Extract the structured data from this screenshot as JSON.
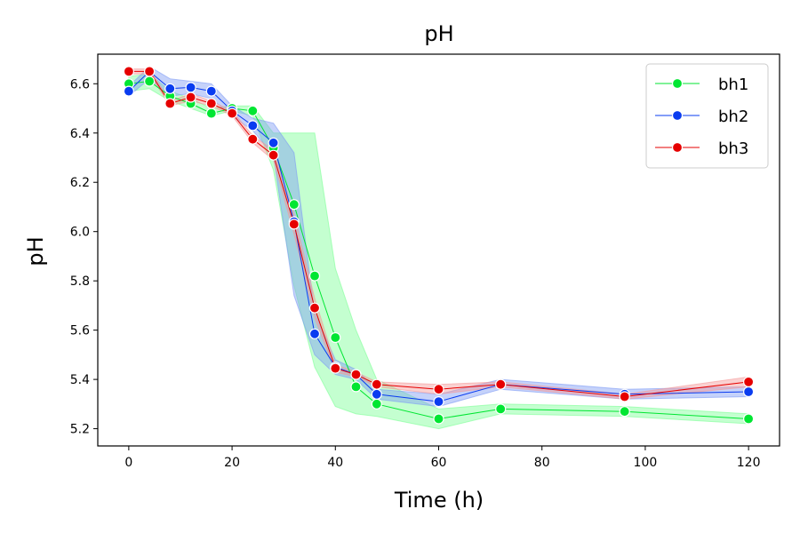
{
  "chart_data": {
    "type": "line",
    "title": "pH",
    "xlabel": "Time (h)",
    "ylabel": "pH",
    "xlim": [
      -6,
      126
    ],
    "ylim": [
      5.13,
      6.72
    ],
    "xticks": [
      0,
      20,
      40,
      60,
      80,
      100,
      120
    ],
    "yticks": [
      5.2,
      5.4,
      5.6,
      5.8,
      6.0,
      6.2,
      6.4,
      6.6
    ],
    "ytick_labels": [
      "5.2",
      "5.4",
      "5.6",
      "5.8",
      "6.0",
      "6.2",
      "6.4",
      "6.6"
    ],
    "grid": false,
    "legend_position": "top-right",
    "x": [
      0,
      4,
      8,
      12,
      16,
      20,
      24,
      28,
      32,
      36,
      40,
      44,
      48,
      60,
      72,
      96,
      120
    ],
    "series": [
      {
        "name": "bh1",
        "color": "#00e632",
        "band_color": "#7dff96",
        "values": [
          6.6,
          6.61,
          6.55,
          6.52,
          6.48,
          6.5,
          6.49,
          6.34,
          6.11,
          5.82,
          5.57,
          5.37,
          5.3,
          5.24,
          5.28,
          5.27,
          5.24
        ],
        "lower": [
          6.57,
          6.58,
          6.53,
          6.5,
          6.47,
          6.49,
          6.47,
          6.25,
          5.78,
          5.45,
          5.29,
          5.26,
          5.25,
          5.2,
          5.26,
          5.25,
          5.22
        ],
        "upper": [
          6.63,
          6.64,
          6.57,
          6.54,
          6.5,
          6.51,
          6.51,
          6.4,
          6.4,
          6.4,
          5.85,
          5.6,
          5.4,
          5.28,
          5.3,
          5.29,
          5.26
        ]
      },
      {
        "name": "bh2",
        "color": "#0a3cf0",
        "band_color": "#7f9bf5",
        "values": [
          6.57,
          6.65,
          6.58,
          6.585,
          6.57,
          6.49,
          6.43,
          6.36,
          6.04,
          5.585,
          5.45,
          5.42,
          5.34,
          5.31,
          5.38,
          5.34,
          5.35
        ],
        "lower": [
          6.55,
          6.62,
          6.55,
          6.56,
          6.54,
          6.47,
          6.41,
          6.31,
          5.74,
          5.5,
          5.42,
          5.4,
          5.32,
          5.29,
          5.36,
          5.32,
          5.33
        ],
        "upper": [
          6.59,
          6.67,
          6.62,
          6.61,
          6.6,
          6.51,
          6.46,
          6.44,
          6.32,
          5.67,
          5.48,
          5.44,
          5.36,
          5.34,
          5.4,
          5.36,
          5.37
        ]
      },
      {
        "name": "bh3",
        "color": "#e60000",
        "band_color": "#f59a9a",
        "values": [
          6.65,
          6.65,
          6.52,
          6.545,
          6.52,
          6.48,
          6.375,
          6.31,
          6.03,
          5.69,
          5.445,
          5.42,
          5.38,
          5.36,
          5.38,
          5.33,
          5.39
        ],
        "lower": [
          6.64,
          6.64,
          6.51,
          6.53,
          6.51,
          6.47,
          6.36,
          6.29,
          5.99,
          5.65,
          5.43,
          5.41,
          5.37,
          5.34,
          5.37,
          5.32,
          5.37
        ],
        "upper": [
          6.66,
          6.66,
          6.53,
          6.56,
          6.53,
          6.49,
          6.39,
          6.33,
          6.07,
          5.73,
          5.46,
          5.43,
          5.39,
          5.38,
          5.39,
          5.34,
          5.41
        ]
      }
    ]
  }
}
